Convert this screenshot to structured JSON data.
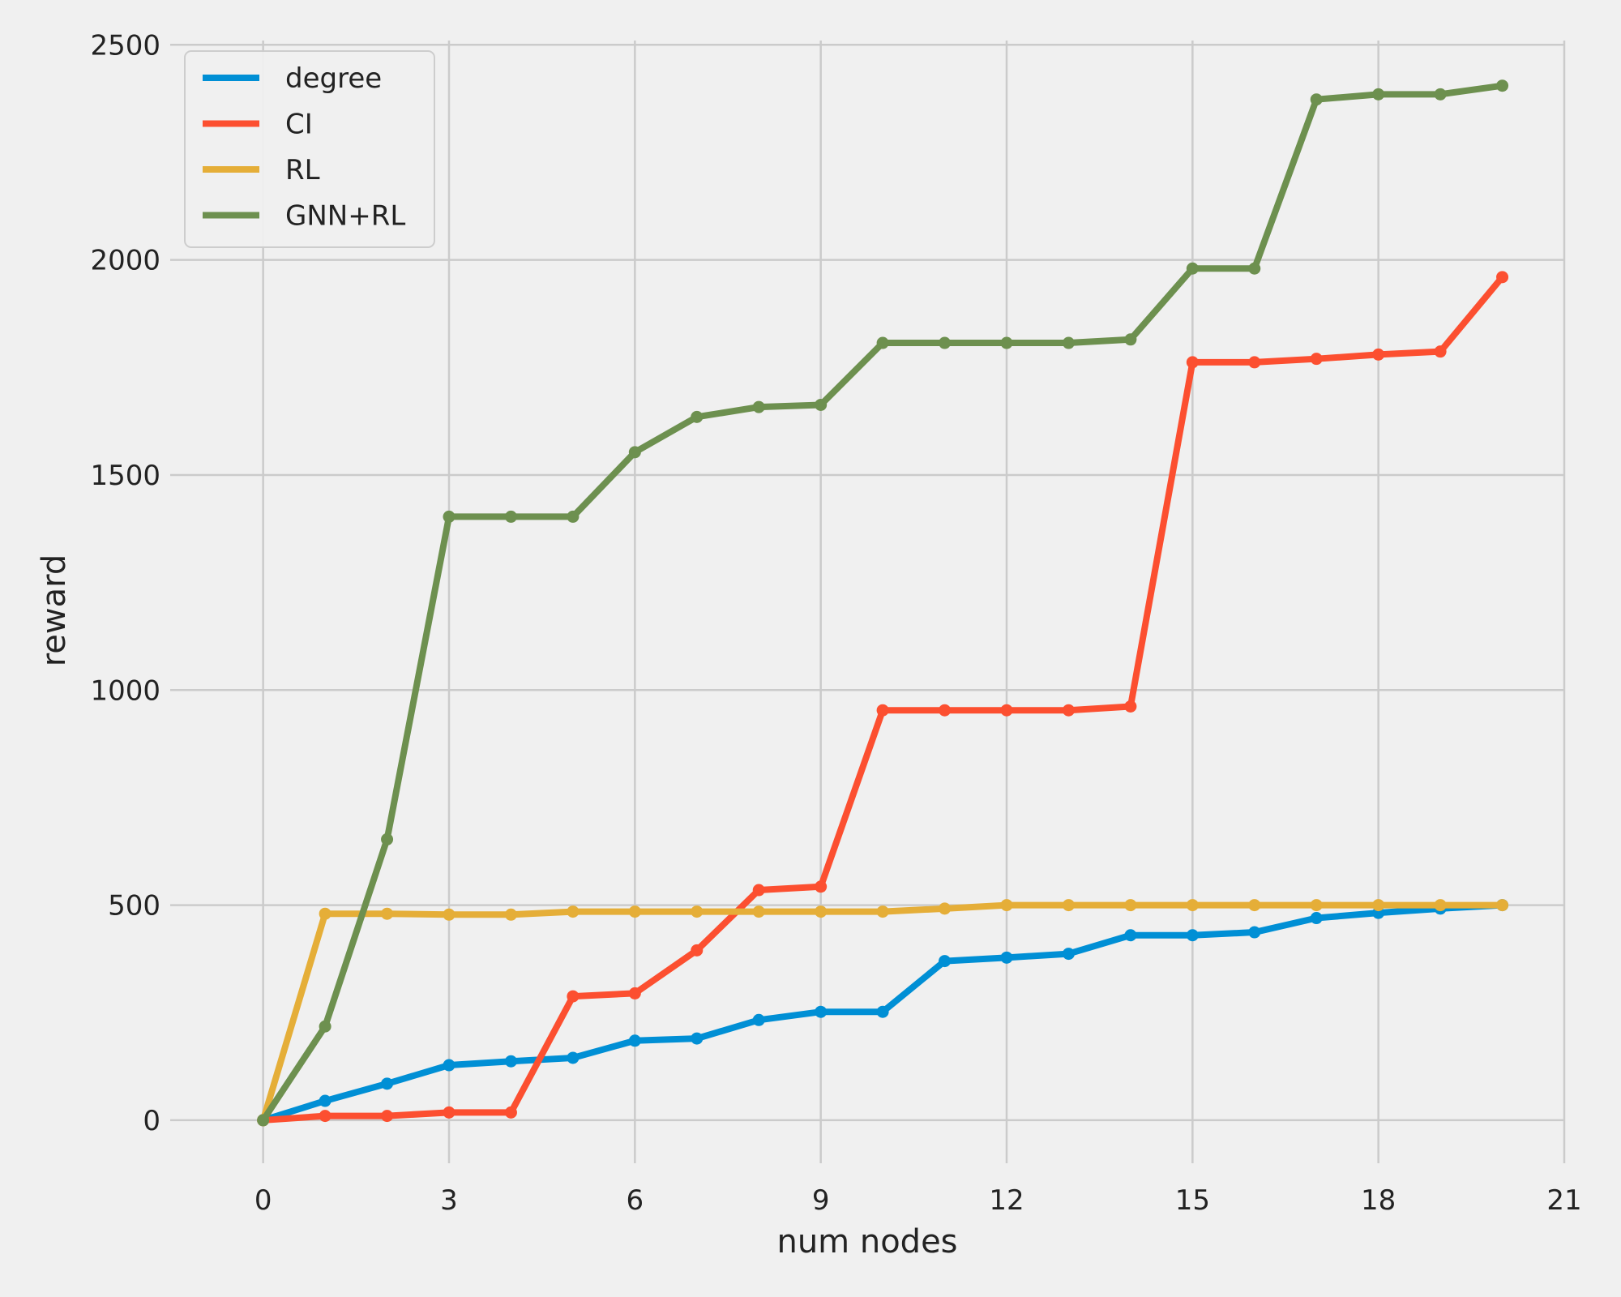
{
  "chart_data": {
    "type": "line",
    "xlabel": "num nodes",
    "ylabel": "reward",
    "xlim": [
      -1.5,
      21
    ],
    "ylim": [
      -100,
      2510
    ],
    "xticks": [
      0,
      3,
      6,
      9,
      12,
      15,
      18,
      21
    ],
    "yticks": [
      0,
      500,
      1000,
      1500,
      2000,
      2500
    ],
    "grid": true,
    "legend_position": "top-left",
    "x": [
      0,
      1,
      2,
      3,
      4,
      5,
      6,
      7,
      8,
      9,
      10,
      11,
      12,
      13,
      14,
      15,
      16,
      17,
      18,
      19,
      20
    ],
    "series": [
      {
        "name": "degree",
        "color": "#008fd5",
        "values": [
          0,
          45,
          85,
          128,
          137,
          145,
          185,
          190,
          233,
          252,
          252,
          370,
          378,
          387,
          430,
          430,
          437,
          470,
          482,
          492,
          500
        ]
      },
      {
        "name": "CI",
        "color": "#fc4f30",
        "values": [
          0,
          10,
          10,
          18,
          18,
          288,
          295,
          395,
          535,
          543,
          953,
          953,
          953,
          953,
          962,
          1762,
          1762,
          1770,
          1780,
          1787,
          1960
        ]
      },
      {
        "name": "RL",
        "color": "#e5ae38",
        "values": [
          0,
          480,
          480,
          478,
          478,
          485,
          485,
          485,
          485,
          485,
          485,
          492,
          500,
          500,
          500,
          500,
          500,
          500,
          500,
          500,
          500
        ]
      },
      {
        "name": "GNN+RL",
        "color": "#6d904f",
        "values": [
          0,
          218,
          653,
          1403,
          1403,
          1403,
          1553,
          1635,
          1658,
          1663,
          1807,
          1807,
          1807,
          1807,
          1815,
          1980,
          1980,
          2373,
          2385,
          2385,
          2405
        ]
      }
    ]
  }
}
